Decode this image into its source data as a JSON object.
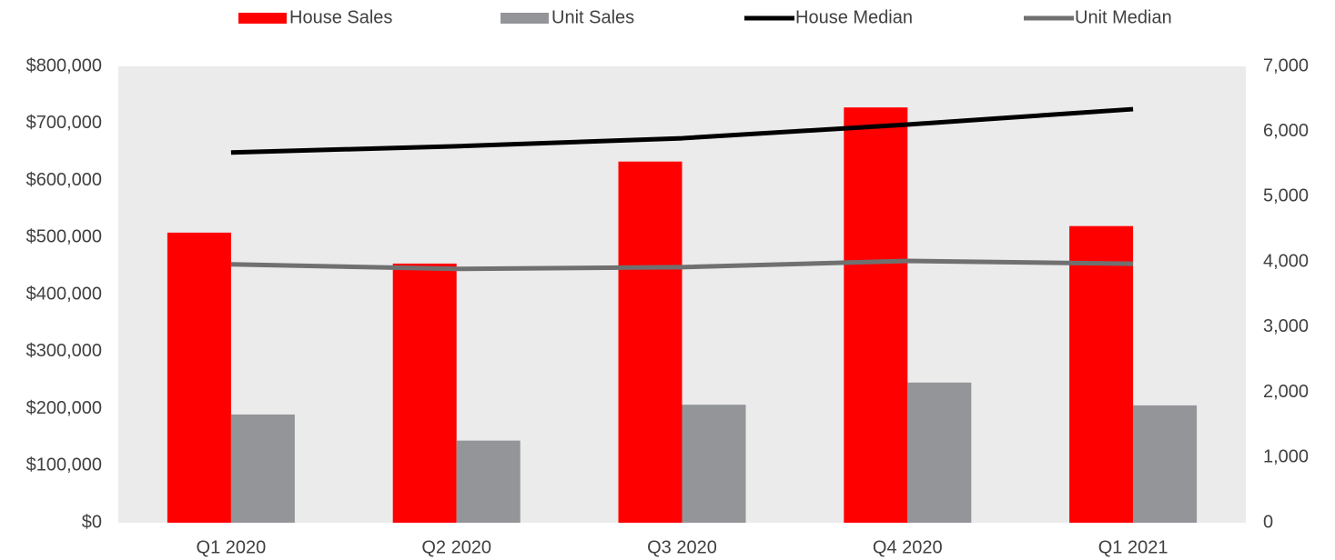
{
  "chart_data": {
    "type": "bar-line",
    "categories": [
      "Q1 2020",
      "Q2 2020",
      "Q3 2020",
      "Q4 2020",
      "Q1 2021"
    ],
    "series": [
      {
        "name": "House Sales",
        "type": "bar",
        "axis": "y2",
        "color": "#ff0000",
        "values": [
          4450,
          3975,
          5540,
          6370,
          4550
        ]
      },
      {
        "name": "Unit Sales",
        "type": "bar",
        "axis": "y2",
        "color": "#939598",
        "values": [
          1660,
          1260,
          1810,
          2150,
          1800
        ]
      },
      {
        "name": "House Median",
        "type": "line",
        "color": "#000000",
        "values": [
          649000,
          660000,
          674000,
          698000,
          725000
        ]
      },
      {
        "name": "Unit Median",
        "type": "line",
        "color": "#707070",
        "values": [
          453000,
          445000,
          448000,
          459000,
          454000
        ]
      }
    ],
    "ylim": [
      0,
      800000
    ],
    "yticks": [
      {
        "value": 0,
        "label": "$0"
      },
      {
        "value": 100000,
        "label": "$100,000"
      },
      {
        "value": 200000,
        "label": "$200,000"
      },
      {
        "value": 300000,
        "label": "$300,000"
      },
      {
        "value": 400000,
        "label": "$400,000"
      },
      {
        "value": 500000,
        "label": "$500,000"
      },
      {
        "value": 600000,
        "label": "$600,000"
      },
      {
        "value": 700000,
        "label": "$700,000"
      },
      {
        "value": 800000,
        "label": "$800,000"
      }
    ],
    "y2lim": [
      0,
      7000
    ],
    "y2ticks": [
      0,
      {
        "value": 1000,
        "label": "1,000"
      },
      {
        "value": 2000,
        "label": "2,000"
      },
      {
        "value": 3000,
        "label": "3,000"
      },
      {
        "value": 4000,
        "label": "4,000"
      },
      {
        "value": 5000,
        "label": "5,000"
      },
      {
        "value": 6000,
        "label": "6,000"
      },
      {
        "value": 7000,
        "label": "7,000"
      }
    ],
    "legend": "top"
  }
}
